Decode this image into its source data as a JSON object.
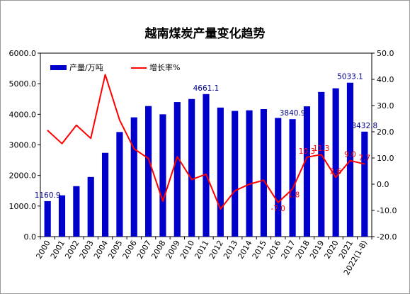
{
  "chart_data": {
    "type": "bar",
    "title": "越南煤炭产量变化趋势",
    "categories": [
      "2000",
      "2001",
      "2002",
      "2003",
      "2004",
      "2005",
      "2006",
      "2007",
      "2008",
      "2009",
      "2010",
      "2011",
      "2012",
      "2013",
      "2014",
      "2015",
      "2016",
      "2017",
      "2018",
      "2019",
      "2020",
      "2021",
      "2022(1-8)"
    ],
    "series": [
      {
        "name": "产量/万吨",
        "type": "bar",
        "axis": "left",
        "color": "#0000CC",
        "values": [
          1160.9,
          1350,
          1650,
          1950,
          2740,
          3420,
          3900,
          4270,
          4000,
          4400,
          4500,
          4661.1,
          4220,
          4110,
          4130,
          4170,
          3880,
          3840.9,
          4260,
          4730,
          4850,
          5033.1,
          3432.8
        ]
      },
      {
        "name": "增长率%",
        "type": "line",
        "axis": "right",
        "color": "#FF0000",
        "values": [
          20.5,
          15.5,
          22.5,
          17.5,
          41.8,
          24.5,
          13.5,
          9.8,
          -6.5,
          10.5,
          1.8,
          3.8,
          -9.5,
          -2.5,
          0.0,
          1.5,
          -7.0,
          -1.8,
          10.3,
          11.3,
          2.6,
          9.0,
          7.7
        ]
      }
    ],
    "y_left": {
      "min": 0,
      "max": 6000,
      "ticks": [
        "0.0",
        "1000.0",
        "2000.0",
        "3000.0",
        "4000.0",
        "5000.0",
        "6000.0"
      ]
    },
    "y_right": {
      "min": -20,
      "max": 50,
      "ticks": [
        "-20.0",
        "-10.0",
        "0.0",
        "10.0",
        "20.0",
        "30.0",
        "40.0",
        "50.0"
      ]
    },
    "bar_labels": [
      {
        "index": 0,
        "text": "1160.9"
      },
      {
        "index": 11,
        "text": "4661.1"
      },
      {
        "index": 17,
        "text": "3840.9"
      },
      {
        "index": 21,
        "text": "5033.1"
      },
      {
        "index": 22,
        "text": "3432.8"
      }
    ],
    "line_labels": [
      {
        "index": 16,
        "text": "-7.0"
      },
      {
        "index": 17,
        "text": "-1.8"
      },
      {
        "index": 18,
        "text": "10.3"
      },
      {
        "index": 19,
        "text": "11.3"
      },
      {
        "index": 20,
        "text": "2.6"
      },
      {
        "index": 21,
        "text": "9.0"
      },
      {
        "index": 22,
        "text": "7.7"
      }
    ],
    "grid": false,
    "legend": "top-left"
  }
}
